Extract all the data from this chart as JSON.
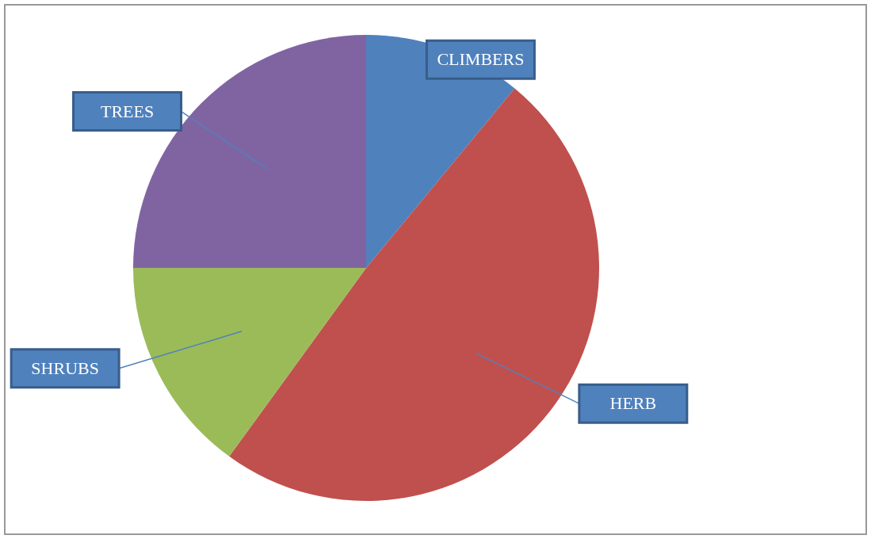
{
  "chart_data": {
    "type": "pie",
    "categories": [
      "CLIMBERS",
      "HERB",
      "SHRUBS",
      "TREES"
    ],
    "values": [
      11,
      49,
      15,
      25
    ],
    "colors": [
      "#4f81bd",
      "#c0504d",
      "#9bbb59",
      "#8064a2"
    ]
  }
}
